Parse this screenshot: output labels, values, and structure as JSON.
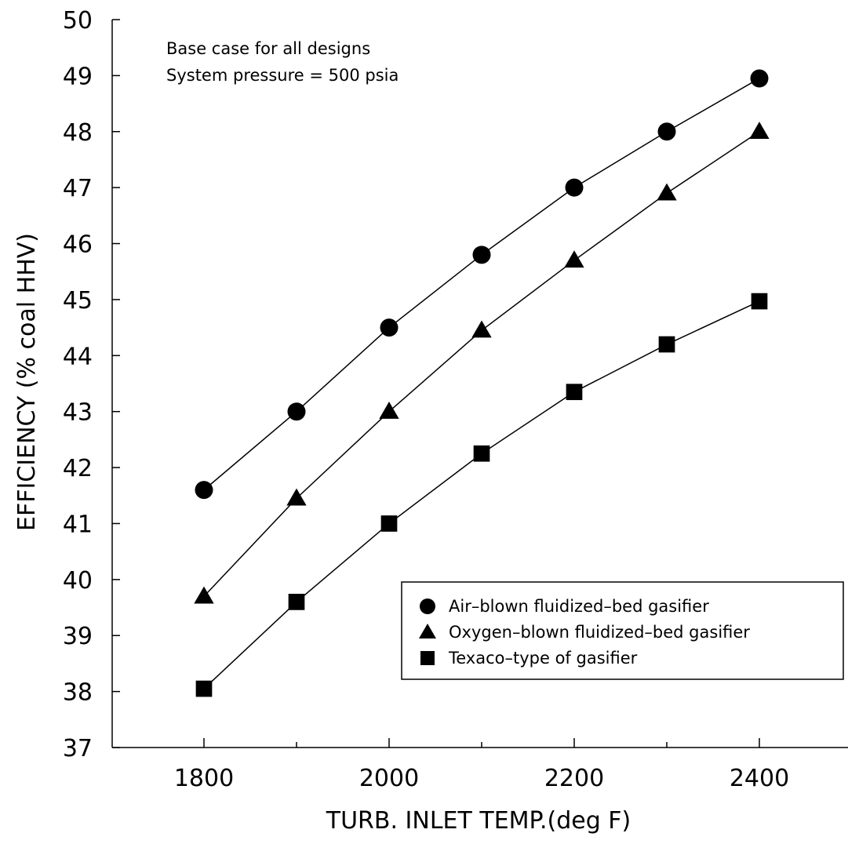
{
  "chart_data": {
    "type": "line",
    "xlabel": "TURB. INLET TEMP.(deg F)",
    "ylabel": "EFFICIENCY (% coal HHV)",
    "xlim": [
      1700,
      2500
    ],
    "ylim": [
      37,
      50
    ],
    "x_ticks": [
      1800,
      2000,
      2200,
      2400
    ],
    "x_minor_ticks": [
      1900,
      2100,
      2300
    ],
    "y_ticks": [
      37,
      38,
      39,
      40,
      41,
      42,
      43,
      44,
      45,
      46,
      47,
      48,
      49,
      50
    ],
    "grid": false,
    "legend_position": "lower-right",
    "annotations": [
      "Base case for all designs",
      "System pressure = 500 psia"
    ],
    "x": [
      1800,
      1900,
      2000,
      2100,
      2200,
      2300,
      2400
    ],
    "series": [
      {
        "name": "Air–blown fluidized–bed gasifier",
        "marker": "circle",
        "values": [
          41.6,
          43.0,
          44.5,
          45.8,
          47.0,
          48.0,
          48.95
        ]
      },
      {
        "name": "Oxygen–blown fluidized–bed gasifier",
        "marker": "triangle",
        "values": [
          39.7,
          41.45,
          43.0,
          44.45,
          45.7,
          46.9,
          48.0
        ]
      },
      {
        "name": "Texaco–type of gasifier",
        "marker": "square",
        "values": [
          38.05,
          39.6,
          41.0,
          42.25,
          43.35,
          44.2,
          44.97
        ]
      }
    ],
    "colors": {
      "line": "#000000",
      "marker": "#000000",
      "background": "#ffffff"
    }
  }
}
